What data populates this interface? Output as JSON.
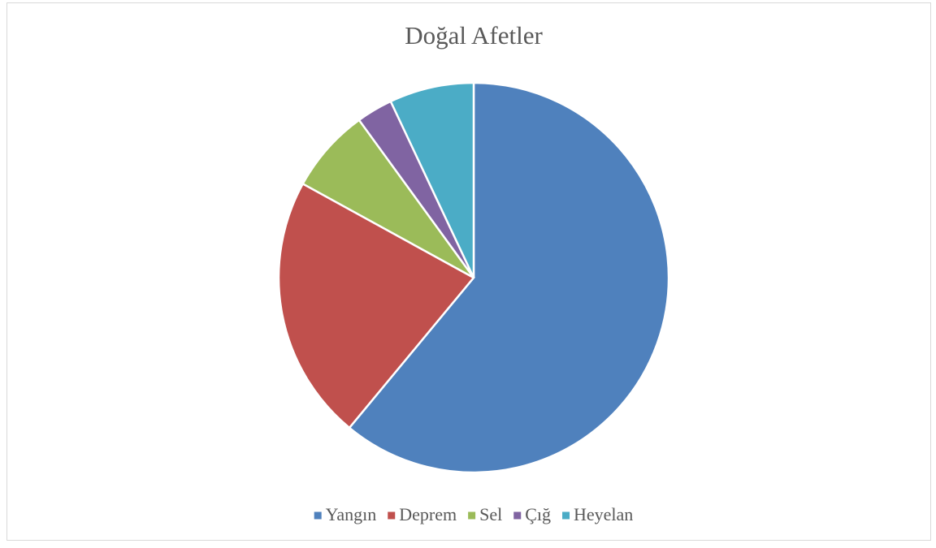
{
  "chart_data": {
    "type": "pie",
    "title": "Doğal Afetler",
    "categories": [
      "Yangın",
      "Deprem",
      "Sel",
      "Çığ",
      "Heyelan"
    ],
    "values": [
      61,
      22,
      7,
      3,
      7
    ],
    "colors": [
      "#4f81bd",
      "#c0504d",
      "#9bbb59",
      "#8064a2",
      "#4bacc6"
    ],
    "legend": "bottom"
  }
}
